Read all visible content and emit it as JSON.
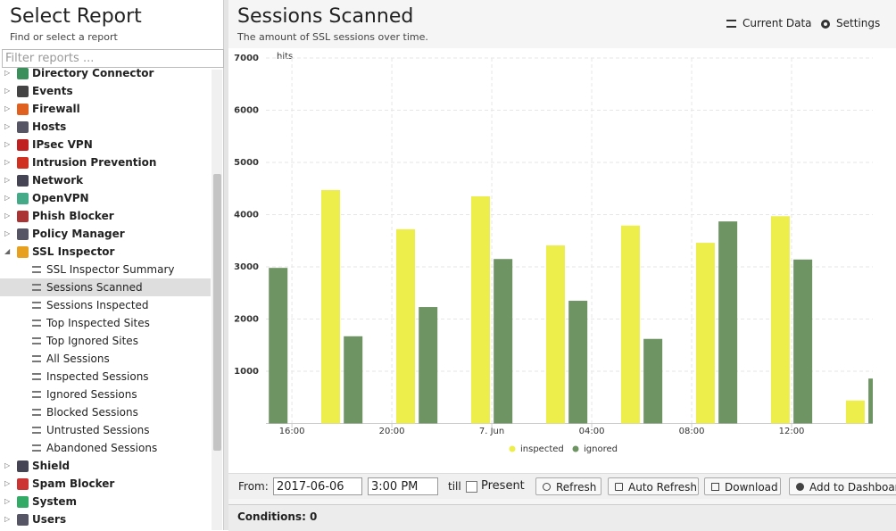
{
  "sidebar": {
    "title": "Select Report",
    "subtitle": "Find or select a report",
    "filter_placeholder": "Filter reports ...",
    "reports": [
      {
        "name": "Directory Connector"
      },
      {
        "name": "Events"
      },
      {
        "name": "Firewall"
      },
      {
        "name": "Hosts"
      },
      {
        "name": "IPsec VPN"
      },
      {
        "name": "Intrusion Prevention"
      },
      {
        "name": "Network"
      },
      {
        "name": "OpenVPN"
      },
      {
        "name": "Phish Blocker"
      },
      {
        "name": "Policy Manager"
      },
      {
        "name": "SSL Inspector",
        "reports": [
          "SSL Inspector Summary",
          "Sessions Scanned",
          "Sessions Inspected",
          "Top Inspected Sites",
          "Top Ignored Sites",
          "All Sessions",
          "Inspected Sessions",
          "Ignored Sessions",
          "Blocked Sessions",
          "Untrusted Sessions",
          "Abandoned Sessions"
        ]
      },
      {
        "name": "Shield"
      },
      {
        "name": "Spam Blocker"
      },
      {
        "name": "System"
      },
      {
        "name": "Users"
      }
    ]
  },
  "header": {
    "title": "Sessions Scanned",
    "subtitle": "The amount of SSL sessions over time.",
    "current_data": "Current Data",
    "settings": "Settings"
  },
  "chart_data": {
    "type": "bar",
    "y_label": "hits",
    "x": [
      15,
      18,
      21,
      24,
      27,
      30,
      33,
      36,
      39
    ],
    "series": [
      {
        "name": "inspected",
        "color": "#eded4b",
        "values": [
          null,
          4470,
          3720,
          4350,
          3410,
          3790,
          3460,
          3970,
          440
        ]
      },
      {
        "name": "ignored",
        "color": "#6f9464",
        "values": [
          2980,
          1670,
          2230,
          3150,
          2350,
          1620,
          3870,
          3140,
          860
        ]
      }
    ],
    "xlim": [
      14.96,
      39.25
    ],
    "xticks": [
      {
        "value": 16,
        "label": "16:00"
      },
      {
        "value": 20,
        "label": "20:00"
      },
      {
        "value": 24,
        "label": "7. Jun"
      },
      {
        "value": 28,
        "label": "04:00"
      },
      {
        "value": 32,
        "label": "08:00"
      },
      {
        "value": 36,
        "label": "12:00"
      }
    ],
    "ylim": [
      0,
      7000
    ],
    "yticks": [
      1000,
      2000,
      3000,
      4000,
      5000,
      6000,
      7000
    ],
    "grid": true,
    "legend": "bottom"
  },
  "toolbar": {
    "from_label": "From:",
    "date": "2017-06-06",
    "time": "3:00 PM",
    "till_label": "till",
    "present": "Present",
    "refresh": "Refresh",
    "auto_refresh": "Auto Refresh",
    "download": "Download",
    "add_to_dashboard": "Add to Dashboard"
  },
  "conditions": "Conditions: 0"
}
